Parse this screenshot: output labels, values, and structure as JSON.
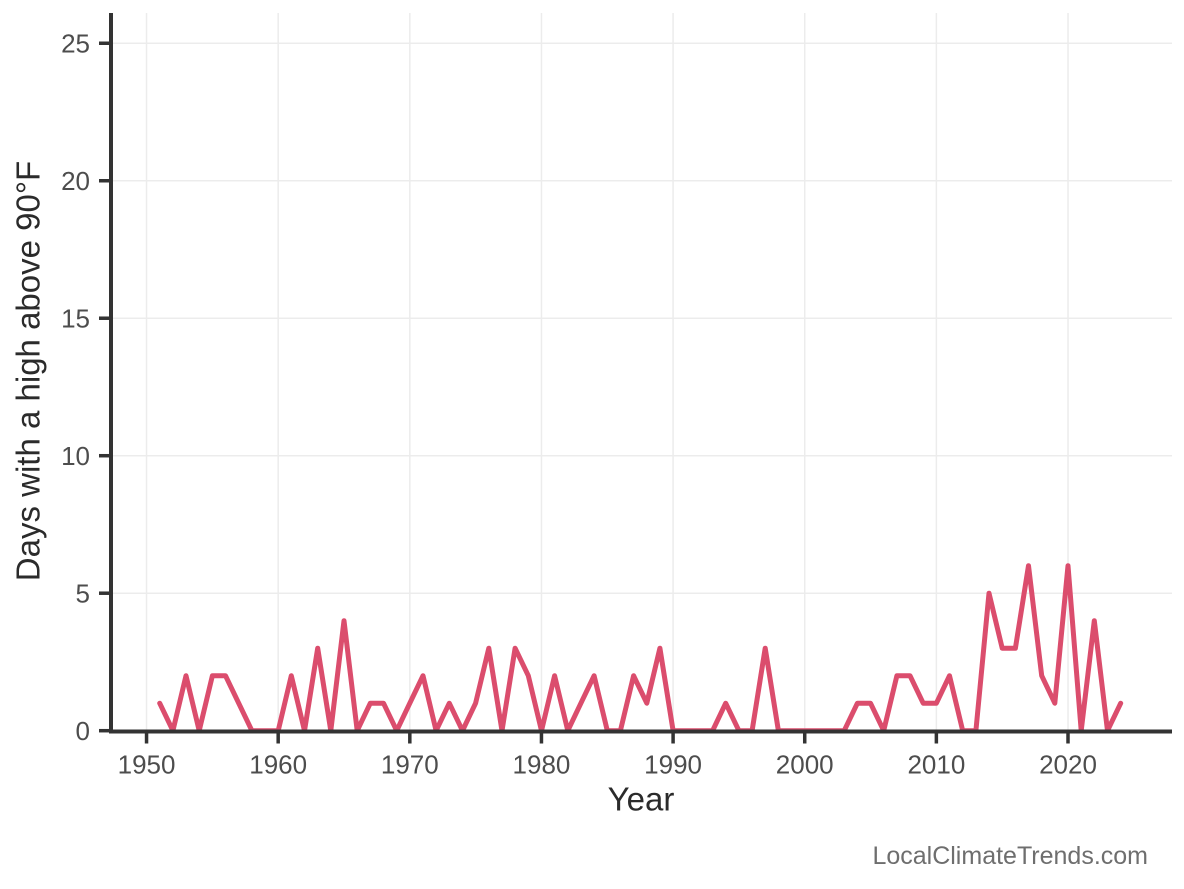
{
  "chart_data": {
    "type": "line",
    "title": "",
    "xlabel": "Year",
    "ylabel": "Days with a high above 90°F",
    "x": [
      1951,
      1952,
      1953,
      1954,
      1955,
      1956,
      1957,
      1958,
      1959,
      1960,
      1961,
      1962,
      1963,
      1964,
      1965,
      1966,
      1967,
      1968,
      1969,
      1970,
      1971,
      1972,
      1973,
      1974,
      1975,
      1976,
      1977,
      1978,
      1979,
      1980,
      1981,
      1982,
      1983,
      1984,
      1985,
      1986,
      1987,
      1988,
      1989,
      1990,
      1991,
      1992,
      1993,
      1994,
      1995,
      1996,
      1997,
      1998,
      1999,
      2000,
      2001,
      2002,
      2003,
      2004,
      2005,
      2006,
      2007,
      2008,
      2009,
      2010,
      2011,
      2012,
      2013,
      2014,
      2015,
      2016,
      2017,
      2018,
      2019,
      2020,
      2021,
      2022,
      2023,
      2024
    ],
    "values": [
      1,
      0,
      2,
      0,
      2,
      2,
      1,
      0,
      0,
      0,
      2,
      0,
      3,
      0,
      4,
      0,
      1,
      1,
      0,
      1,
      2,
      0,
      1,
      0,
      1,
      3,
      0,
      3,
      2,
      0,
      2,
      0,
      1,
      2,
      0,
      0,
      2,
      1,
      3,
      0,
      0,
      0,
      0,
      1,
      0,
      0,
      3,
      0,
      0,
      0,
      0,
      0,
      0,
      1,
      1,
      0,
      2,
      2,
      1,
      1,
      2,
      0,
      0,
      5,
      3,
      3,
      6,
      2,
      1,
      6,
      0,
      4,
      0,
      1
    ],
    "xticks": [
      1950,
      1960,
      1970,
      1980,
      1990,
      2000,
      2010,
      2020
    ],
    "yticks": [
      0,
      5,
      10,
      15,
      20,
      25
    ],
    "xlim": [
      1947.3,
      2027.9
    ],
    "ylim": [
      0,
      26.1
    ],
    "grid": "major",
    "legend": "none"
  },
  "colors": {
    "line": "#db4d6d",
    "axis": "#333333",
    "grid": "#ececec",
    "tick_text": "#4d4d4d",
    "title_text": "#2b2b2b",
    "background": "#ffffff"
  },
  "watermark": {
    "text": "LocalClimateTrends.com"
  }
}
